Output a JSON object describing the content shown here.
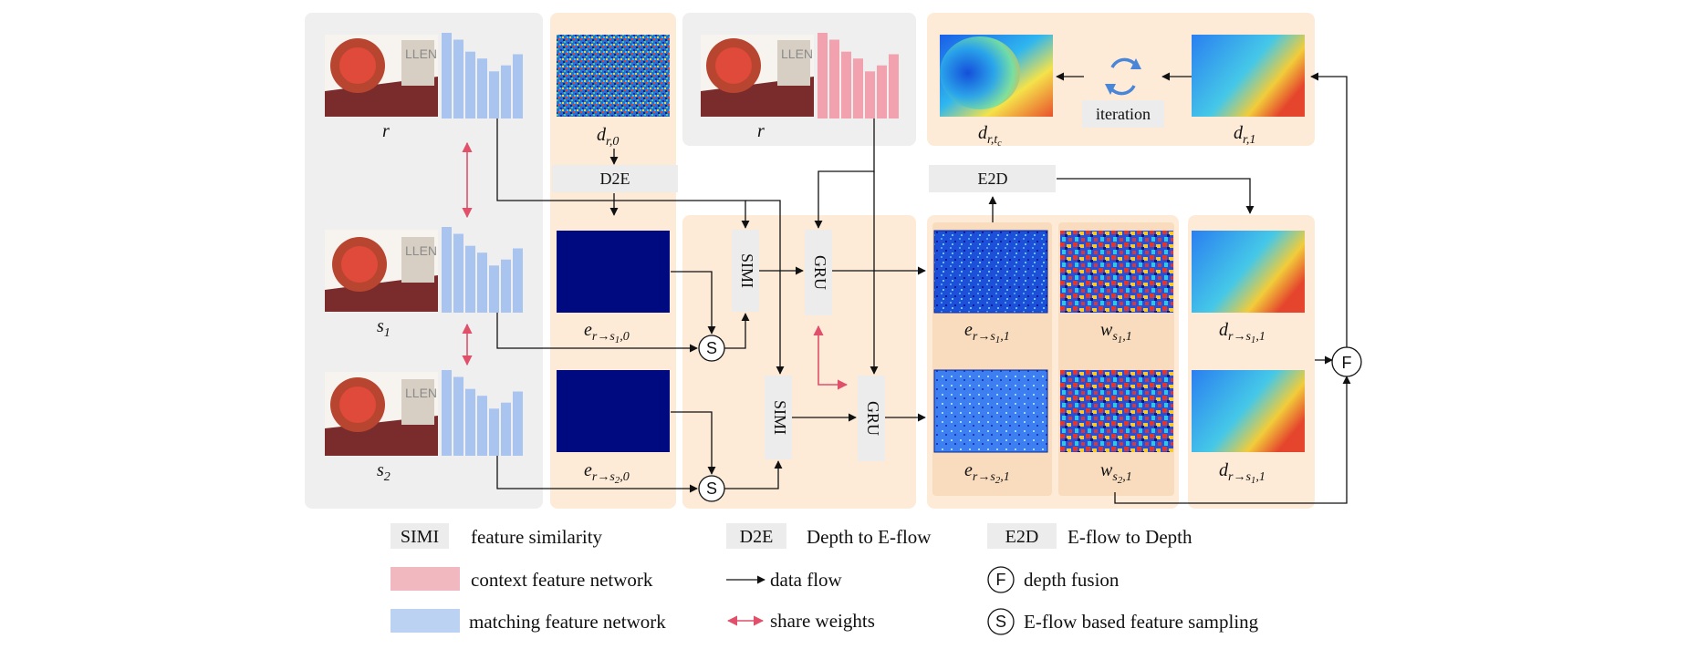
{
  "labels": {
    "r_top": "r",
    "s1": "s",
    "s1_sub": "1",
    "s2": "s",
    "s2_sub": "2",
    "d_r0": "d",
    "d_r0_sub": "r,0",
    "r_ctx": "r",
    "d_rtc": "d",
    "d_rtc_sub": "r,t",
    "d_rtc_subsub": "c",
    "d_r1": "d",
    "d_r1_sub": "r,1",
    "e_s1_0": "e",
    "e_s1_0_sub_a": "r→s",
    "e_s1_0_sub_b": "1",
    "e_s1_0_sub_c": ",0",
    "e_s2_0": "e",
    "e_s2_0_sub_a": "r→s",
    "e_s2_0_sub_b": "2",
    "e_s2_0_sub_c": ",0",
    "e_s1_1": "e",
    "e_s1_1_sub_a": "r→s",
    "e_s1_1_sub_b": "1",
    "e_s1_1_sub_c": ",1",
    "e_s2_1": "e",
    "e_s2_1_sub_a": "r→s",
    "e_s2_1_sub_b": "2",
    "e_s2_1_sub_c": ",1",
    "w_s1": "w",
    "w_s1_sub_a": "s",
    "w_s1_sub_b": "1",
    "w_s1_sub_c": ",1",
    "w_s2": "w",
    "w_s2_sub_a": "s",
    "w_s2_sub_b": "2",
    "w_s2_sub_c": ",1",
    "d_rs1_a": "d",
    "d_rs1_a_sub_a": "r→s",
    "d_rs1_a_sub_b": "1",
    "d_rs1_a_sub_c": ",1",
    "d_rs1_b": "d",
    "d_rs1_b_sub_a": "r→s",
    "d_rs1_b_sub_b": "1",
    "d_rs1_b_sub_c": ",1"
  },
  "blocks": {
    "d2e": "D2E",
    "e2d": "E2D",
    "simi_1": "SIMI",
    "simi_2": "SIMI",
    "gru_1": "GRU",
    "gru_2": "GRU",
    "iteration": "iteration",
    "sampling_1": "S",
    "sampling_2": "S",
    "fusion": "F"
  },
  "legend": {
    "simi_key": "SIMI",
    "simi_desc": "feature similarity",
    "d2e_key": "D2E",
    "d2e_desc": "Depth to E-flow",
    "e2d_key": "E2D",
    "e2d_desc": "E-flow to Depth",
    "context_desc": "context feature network",
    "data_flow_desc": "data flow",
    "fusion_key": "F",
    "fusion_desc": "depth fusion",
    "matching_desc": "matching feature network",
    "share_desc": "share weights",
    "sampling_key": "S",
    "sampling_desc": "E-flow based feature sampling"
  },
  "colors": {
    "panel_gray": "#efefef",
    "panel_orange": "#fdebd8",
    "panel_orange_dark": "#f9dcbd",
    "block_gray": "#ececec",
    "matching_blue": "#a9c4ef",
    "context_pink": "#f2a2ae",
    "share_red": "#e0506a",
    "eflow_navy": "#000a80"
  },
  "feature_bars": {
    "matching": [
      1.0,
      0.92,
      0.78,
      0.7,
      0.55,
      0.62,
      0.75
    ],
    "context": [
      1.0,
      0.92,
      0.78,
      0.7,
      0.55,
      0.62,
      0.75
    ]
  },
  "icons": {
    "scene_image": "clock-scene-image",
    "noise_map": "random-noise-map",
    "depth_map": "depth-map",
    "error_map": "error-map",
    "weight_map": "weight-map",
    "iteration": "cycle-arrows-icon"
  }
}
